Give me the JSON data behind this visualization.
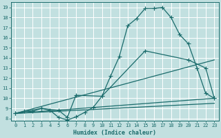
{
  "xlabel": "Humidex (Indice chaleur)",
  "bg_color": "#c2e0e0",
  "grid_color": "#ffffff",
  "line_color": "#1a6b6b",
  "xlim": [
    -0.5,
    23.5
  ],
  "ylim": [
    7.8,
    19.5
  ],
  "xticks": [
    0,
    1,
    2,
    3,
    4,
    5,
    6,
    7,
    8,
    9,
    10,
    11,
    12,
    13,
    14,
    15,
    16,
    17,
    18,
    19,
    20,
    21,
    22,
    23
  ],
  "yticks": [
    8,
    9,
    10,
    11,
    12,
    13,
    14,
    15,
    16,
    17,
    18,
    19
  ],
  "line1_x": [
    0,
    1,
    2,
    3,
    4,
    5,
    6,
    7,
    8,
    9,
    10,
    11,
    12,
    13,
    14,
    15,
    16,
    17,
    18,
    19,
    20,
    21,
    22,
    23
  ],
  "line1_y": [
    8.5,
    8.7,
    8.7,
    9.0,
    8.8,
    8.1,
    7.85,
    8.15,
    8.6,
    9.1,
    10.2,
    12.2,
    14.1,
    17.2,
    17.9,
    18.9,
    18.9,
    19.0,
    18.0,
    16.3,
    15.4,
    13.0,
    10.5,
    10.0
  ],
  "line2_x": [
    0,
    3,
    5,
    6,
    7,
    10,
    15,
    20,
    22,
    23
  ],
  "line2_y": [
    8.5,
    9.0,
    8.8,
    8.1,
    10.3,
    10.2,
    14.7,
    13.8,
    13.0,
    10.0
  ],
  "line3_x": [
    0,
    23
  ],
  "line3_y": [
    8.5,
    13.8
  ],
  "line4_x": [
    0,
    23
  ],
  "line4_y": [
    8.5,
    10.0
  ]
}
